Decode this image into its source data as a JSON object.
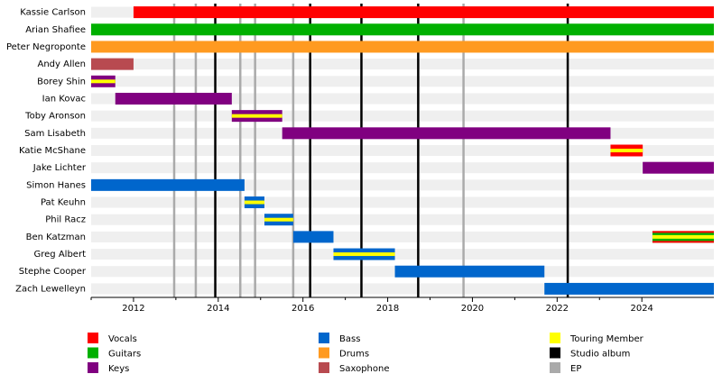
{
  "chart_data": {
    "type": "timeline",
    "xlim": [
      2011,
      2025.7
    ],
    "xticks": [
      2012,
      2014,
      2016,
      2018,
      2020,
      2022,
      2024
    ],
    "roles": [
      {
        "name": "Vocals",
        "color": "#ff0000"
      },
      {
        "name": "Guitars",
        "color": "#00b000"
      },
      {
        "name": "Keys",
        "color": "#800080"
      },
      {
        "name": "Bass",
        "color": "#0066cc"
      },
      {
        "name": "Drums",
        "color": "#ff9a20"
      },
      {
        "name": "Saxophone",
        "color": "#b84a50"
      }
    ],
    "touring": {
      "name": "Touring Member",
      "color": "#ffff00"
    },
    "releases": [
      {
        "name": "Studio album",
        "color": "#000000",
        "dates": [
          2013.93,
          2016.17,
          2017.38,
          2018.72,
          2022.25
        ]
      },
      {
        "name": "EP",
        "color": "#aaaaaa",
        "dates": [
          2012.96,
          2013.47,
          2014.52,
          2014.87,
          2015.77,
          2019.79
        ]
      }
    ],
    "members": [
      {
        "name": "Kassie Carlson",
        "spans": [
          {
            "start": 2012.0,
            "end": 2025.7,
            "roles": [
              0
            ],
            "touring": false
          }
        ]
      },
      {
        "name": "Arian Shafiee",
        "spans": [
          {
            "start": 2011.0,
            "end": 2025.7,
            "roles": [
              1
            ],
            "touring": false
          }
        ]
      },
      {
        "name": "Peter Negroponte",
        "spans": [
          {
            "start": 2011.0,
            "end": 2025.7,
            "roles": [
              4
            ],
            "touring": false
          }
        ]
      },
      {
        "name": "Andy Allen",
        "spans": [
          {
            "start": 2011.0,
            "end": 2012.0,
            "roles": [
              5
            ],
            "touring": false
          }
        ]
      },
      {
        "name": "Borey Shin",
        "spans": [
          {
            "start": 2011.0,
            "end": 2011.57,
            "roles": [
              2
            ],
            "touring": true
          }
        ]
      },
      {
        "name": "Ian Kovac",
        "spans": [
          {
            "start": 2011.57,
            "end": 2014.32,
            "roles": [
              2
            ],
            "touring": false
          }
        ]
      },
      {
        "name": "Toby Aronson",
        "spans": [
          {
            "start": 2014.32,
            "end": 2015.51,
            "roles": [
              2
            ],
            "touring": true
          }
        ]
      },
      {
        "name": "Sam Lisabeth",
        "spans": [
          {
            "start": 2015.51,
            "end": 2023.26,
            "roles": [
              2
            ],
            "touring": false
          }
        ]
      },
      {
        "name": "Katie McShane",
        "spans": [
          {
            "start": 2023.26,
            "end": 2024.02,
            "roles": [
              0
            ],
            "touring": true
          }
        ]
      },
      {
        "name": "Jake Lichter",
        "spans": [
          {
            "start": 2024.02,
            "end": 2025.7,
            "roles": [
              2
            ],
            "touring": false
          }
        ]
      },
      {
        "name": "Simon Hanes",
        "spans": [
          {
            "start": 2011.0,
            "end": 2014.62,
            "roles": [
              3
            ],
            "touring": false
          }
        ]
      },
      {
        "name": "Pat Keuhn",
        "spans": [
          {
            "start": 2014.62,
            "end": 2015.09,
            "roles": [
              3
            ],
            "touring": true
          }
        ]
      },
      {
        "name": "Phil Racz",
        "spans": [
          {
            "start": 2015.09,
            "end": 2015.77,
            "roles": [
              3
            ],
            "touring": true
          }
        ]
      },
      {
        "name": "Ben Katzman",
        "spans": [
          {
            "start": 2015.77,
            "end": 2016.72,
            "roles": [
              3
            ],
            "touring": false
          },
          {
            "start": 2024.25,
            "end": 2025.7,
            "roles": [
              1,
              0
            ],
            "touring": true
          }
        ]
      },
      {
        "name": "Greg Albert",
        "spans": [
          {
            "start": 2016.72,
            "end": 2018.17,
            "roles": [
              3
            ],
            "touring": true
          }
        ]
      },
      {
        "name": "Stephe Cooper",
        "spans": [
          {
            "start": 2018.17,
            "end": 2021.7,
            "roles": [
              3
            ],
            "touring": false
          }
        ]
      },
      {
        "name": "Zach Lewelleyn",
        "spans": [
          {
            "start": 2021.7,
            "end": 2025.7,
            "roles": [
              3
            ],
            "touring": false
          }
        ]
      }
    ]
  }
}
